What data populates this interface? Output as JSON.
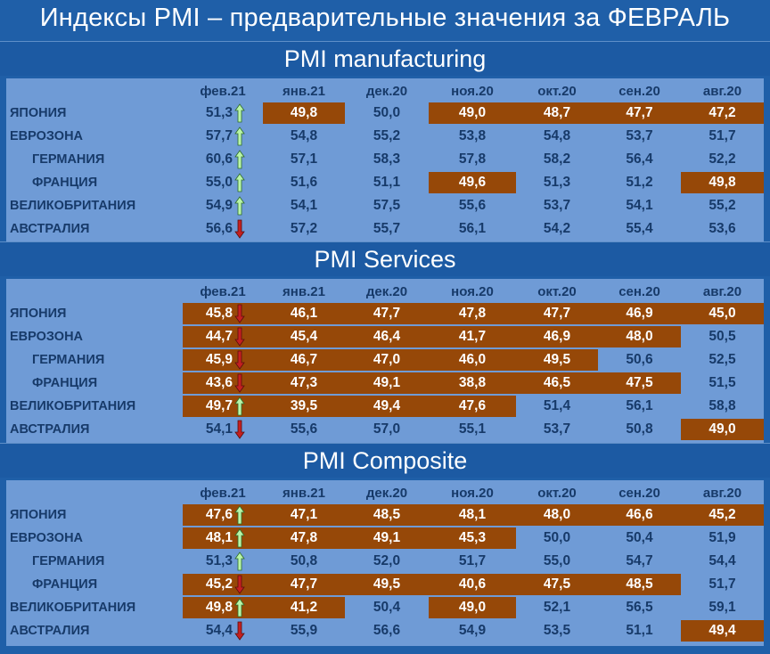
{
  "title": "Индексы PMI – предварительные значения за ФЕВРАЛЬ",
  "colors": {
    "background": "#1f5fa8",
    "table": "#6f9bd6",
    "highlight": "#964808",
    "text": "#173a69",
    "arrow_up": "#b9f5a8",
    "arrow_down": "#c42020"
  },
  "chart_data": [
    {
      "type": "table",
      "title": "PMI manufacturing",
      "columns": [
        "фев.21",
        "янв.21",
        "дек.20",
        "ноя.20",
        "окт.20",
        "сен.20",
        "авг.20"
      ],
      "rows": [
        {
          "country": "ЯПОНИЯ",
          "sub": false,
          "values": [
            "51,3",
            "49,8",
            "50,0",
            "49,0",
            "48,7",
            "47,7",
            "47,2"
          ],
          "highlight": [
            false,
            true,
            false,
            true,
            true,
            true,
            true
          ],
          "trend": "up"
        },
        {
          "country": "ЕВРОЗОНА",
          "sub": false,
          "values": [
            "57,7",
            "54,8",
            "55,2",
            "53,8",
            "54,8",
            "53,7",
            "51,7"
          ],
          "highlight": [
            false,
            false,
            false,
            false,
            false,
            false,
            false
          ],
          "trend": "up"
        },
        {
          "country": "ГЕРМАНИЯ",
          "sub": true,
          "values": [
            "60,6",
            "57,1",
            "58,3",
            "57,8",
            "58,2",
            "56,4",
            "52,2"
          ],
          "highlight": [
            false,
            false,
            false,
            false,
            false,
            false,
            false
          ],
          "trend": "up"
        },
        {
          "country": "ФРАНЦИЯ",
          "sub": true,
          "values": [
            "55,0",
            "51,6",
            "51,1",
            "49,6",
            "51,3",
            "51,2",
            "49,8"
          ],
          "highlight": [
            false,
            false,
            false,
            true,
            false,
            false,
            true
          ],
          "trend": "up"
        },
        {
          "country": "ВЕЛИКОБРИТАНИЯ",
          "sub": false,
          "values": [
            "54,9",
            "54,1",
            "57,5",
            "55,6",
            "53,7",
            "54,1",
            "55,2"
          ],
          "highlight": [
            false,
            false,
            false,
            false,
            false,
            false,
            false
          ],
          "trend": "up"
        },
        {
          "country": "АВСТРАЛИЯ",
          "sub": false,
          "values": [
            "56,6",
            "57,2",
            "55,7",
            "56,1",
            "54,2",
            "55,4",
            "53,6"
          ],
          "highlight": [
            false,
            false,
            false,
            false,
            false,
            false,
            false
          ],
          "trend": "down"
        }
      ]
    },
    {
      "type": "table",
      "title": "PMI Services",
      "columns": [
        "фев.21",
        "янв.21",
        "дек.20",
        "ноя.20",
        "окт.20",
        "сен.20",
        "авг.20"
      ],
      "rows": [
        {
          "country": "ЯПОНИЯ",
          "sub": false,
          "values": [
            "45,8",
            "46,1",
            "47,7",
            "47,8",
            "47,7",
            "46,9",
            "45,0"
          ],
          "highlight": [
            true,
            true,
            true,
            true,
            true,
            true,
            true
          ],
          "trend": "down"
        },
        {
          "country": "ЕВРОЗОНА",
          "sub": false,
          "values": [
            "44,7",
            "45,4",
            "46,4",
            "41,7",
            "46,9",
            "48,0",
            "50,5"
          ],
          "highlight": [
            true,
            true,
            true,
            true,
            true,
            true,
            false
          ],
          "trend": "down"
        },
        {
          "country": "ГЕРМАНИЯ",
          "sub": true,
          "values": [
            "45,9",
            "46,7",
            "47,0",
            "46,0",
            "49,5",
            "50,6",
            "52,5"
          ],
          "highlight": [
            true,
            true,
            true,
            true,
            true,
            false,
            false
          ],
          "trend": "down"
        },
        {
          "country": "ФРАНЦИЯ",
          "sub": true,
          "values": [
            "43,6",
            "47,3",
            "49,1",
            "38,8",
            "46,5",
            "47,5",
            "51,5"
          ],
          "highlight": [
            true,
            true,
            true,
            true,
            true,
            true,
            false
          ],
          "trend": "down"
        },
        {
          "country": "ВЕЛИКОБРИТАНИЯ",
          "sub": false,
          "values": [
            "49,7",
            "39,5",
            "49,4",
            "47,6",
            "51,4",
            "56,1",
            "58,8"
          ],
          "highlight": [
            true,
            true,
            true,
            true,
            false,
            false,
            false
          ],
          "trend": "up"
        },
        {
          "country": "АВСТРАЛИЯ",
          "sub": false,
          "values": [
            "54,1",
            "55,6",
            "57,0",
            "55,1",
            "53,7",
            "50,8",
            "49,0"
          ],
          "highlight": [
            false,
            false,
            false,
            false,
            false,
            false,
            true
          ],
          "trend": "down"
        }
      ]
    },
    {
      "type": "table",
      "title": "PMI Composite",
      "columns": [
        "фев.21",
        "янв.21",
        "дек.20",
        "ноя.20",
        "окт.20",
        "сен.20",
        "авг.20"
      ],
      "rows": [
        {
          "country": "ЯПОНИЯ",
          "sub": false,
          "values": [
            "47,6",
            "47,1",
            "48,5",
            "48,1",
            "48,0",
            "46,6",
            "45,2"
          ],
          "highlight": [
            true,
            true,
            true,
            true,
            true,
            true,
            true
          ],
          "trend": "up"
        },
        {
          "country": "ЕВРОЗОНА",
          "sub": false,
          "values": [
            "48,1",
            "47,8",
            "49,1",
            "45,3",
            "50,0",
            "50,4",
            "51,9"
          ],
          "highlight": [
            true,
            true,
            true,
            true,
            false,
            false,
            false
          ],
          "trend": "up"
        },
        {
          "country": "ГЕРМАНИЯ",
          "sub": true,
          "values": [
            "51,3",
            "50,8",
            "52,0",
            "51,7",
            "55,0",
            "54,7",
            "54,4"
          ],
          "highlight": [
            false,
            false,
            false,
            false,
            false,
            false,
            false
          ],
          "trend": "up"
        },
        {
          "country": "ФРАНЦИЯ",
          "sub": true,
          "values": [
            "45,2",
            "47,7",
            "49,5",
            "40,6",
            "47,5",
            "48,5",
            "51,7"
          ],
          "highlight": [
            true,
            true,
            true,
            true,
            true,
            true,
            false
          ],
          "trend": "down"
        },
        {
          "country": "ВЕЛИКОБРИТАНИЯ",
          "sub": false,
          "values": [
            "49,8",
            "41,2",
            "50,4",
            "49,0",
            "52,1",
            "56,5",
            "59,1"
          ],
          "highlight": [
            true,
            true,
            false,
            true,
            false,
            false,
            false
          ],
          "trend": "up"
        },
        {
          "country": "АВСТРАЛИЯ",
          "sub": false,
          "values": [
            "54,4",
            "55,9",
            "56,6",
            "54,9",
            "53,5",
            "51,1",
            "49,4"
          ],
          "highlight": [
            false,
            false,
            false,
            false,
            false,
            false,
            true
          ],
          "trend": "down"
        }
      ]
    }
  ]
}
